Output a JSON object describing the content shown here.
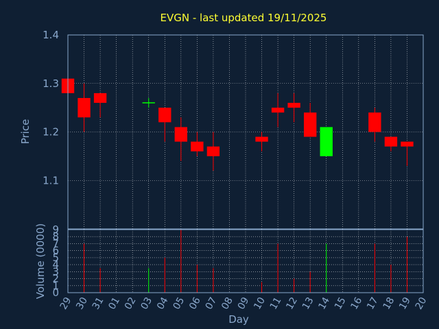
{
  "chart_data": {
    "type": "candlestick",
    "title": "EVGN - last updated 19/11/2025",
    "xlabel": "Day",
    "x_ticks": [
      "29",
      "30",
      "31",
      "01",
      "02",
      "03",
      "04",
      "05",
      "06",
      "07",
      "08",
      "09",
      "10",
      "11",
      "12",
      "13",
      "14",
      "15",
      "16",
      "17",
      "18",
      "19",
      "20"
    ],
    "price_panel": {
      "ylabel": "Price",
      "ylim": [
        1.0,
        1.4
      ],
      "y_ticks": [
        "1.1",
        "1.2",
        "1.3",
        "1.4"
      ],
      "candles": [
        {
          "day": "29",
          "open": 1.31,
          "high": 1.31,
          "low": 1.28,
          "close": 1.28
        },
        {
          "day": "30",
          "open": 1.27,
          "high": 1.3,
          "low": 1.2,
          "close": 1.23
        },
        {
          "day": "31",
          "open": 1.28,
          "high": 1.28,
          "low": 1.23,
          "close": 1.26
        },
        {
          "day": "03",
          "open": 1.26,
          "high": 1.27,
          "low": 1.25,
          "close": 1.26
        },
        {
          "day": "04",
          "open": 1.25,
          "high": 1.25,
          "low": 1.18,
          "close": 1.22
        },
        {
          "day": "05",
          "open": 1.21,
          "high": 1.23,
          "low": 1.14,
          "close": 1.18
        },
        {
          "day": "06",
          "open": 1.18,
          "high": 1.2,
          "low": 1.15,
          "close": 1.16
        },
        {
          "day": "07",
          "open": 1.17,
          "high": 1.2,
          "low": 1.12,
          "close": 1.15
        },
        {
          "day": "10",
          "open": 1.19,
          "high": 1.2,
          "low": 1.16,
          "close": 1.18
        },
        {
          "day": "11",
          "open": 1.25,
          "high": 1.28,
          "low": 1.21,
          "close": 1.24
        },
        {
          "day": "12",
          "open": 1.26,
          "high": 1.28,
          "low": 1.22,
          "close": 1.25
        },
        {
          "day": "13",
          "open": 1.24,
          "high": 1.26,
          "low": 1.19,
          "close": 1.19
        },
        {
          "day": "14",
          "open": 1.15,
          "high": 1.21,
          "low": 1.15,
          "close": 1.21
        },
        {
          "day": "17",
          "open": 1.24,
          "high": 1.25,
          "low": 1.18,
          "close": 1.2
        },
        {
          "day": "18",
          "open": 1.19,
          "high": 1.19,
          "low": 1.16,
          "close": 1.17
        },
        {
          "day": "19",
          "open": 1.18,
          "high": 1.18,
          "low": 1.13,
          "close": 1.17
        }
      ]
    },
    "volume_panel": {
      "ylabel": "Volume (0000)",
      "ylim": [
        0,
        9
      ],
      "y_ticks": [
        "0",
        "1",
        "2",
        "3",
        "4",
        "5",
        "6",
        "7",
        "8",
        "9"
      ],
      "bars": [
        {
          "day": "30",
          "value": 7,
          "up": false
        },
        {
          "day": "31",
          "value": 3.5,
          "up": false
        },
        {
          "day": "03",
          "value": 3.5,
          "up": true
        },
        {
          "day": "04",
          "value": 5,
          "up": false
        },
        {
          "day": "05",
          "value": 9,
          "up": false
        },
        {
          "day": "06",
          "value": 4,
          "up": false
        },
        {
          "day": "07",
          "value": 3.5,
          "up": false
        },
        {
          "day": "10",
          "value": 1.5,
          "up": false
        },
        {
          "day": "11",
          "value": 7,
          "up": false
        },
        {
          "day": "12",
          "value": 2,
          "up": false
        },
        {
          "day": "13",
          "value": 3,
          "up": false
        },
        {
          "day": "14",
          "value": 7,
          "up": true
        },
        {
          "day": "17",
          "value": 7,
          "up": false
        },
        {
          "day": "18",
          "value": 4,
          "up": false
        },
        {
          "day": "19",
          "value": 8,
          "up": false
        }
      ]
    },
    "colors": {
      "background": "#0f1f33",
      "up": "#00ff00",
      "down": "#ff0000",
      "frame": "#8aa8cc",
      "grid": "#ffffff",
      "title": "#ffff33"
    },
    "grid": true
  }
}
